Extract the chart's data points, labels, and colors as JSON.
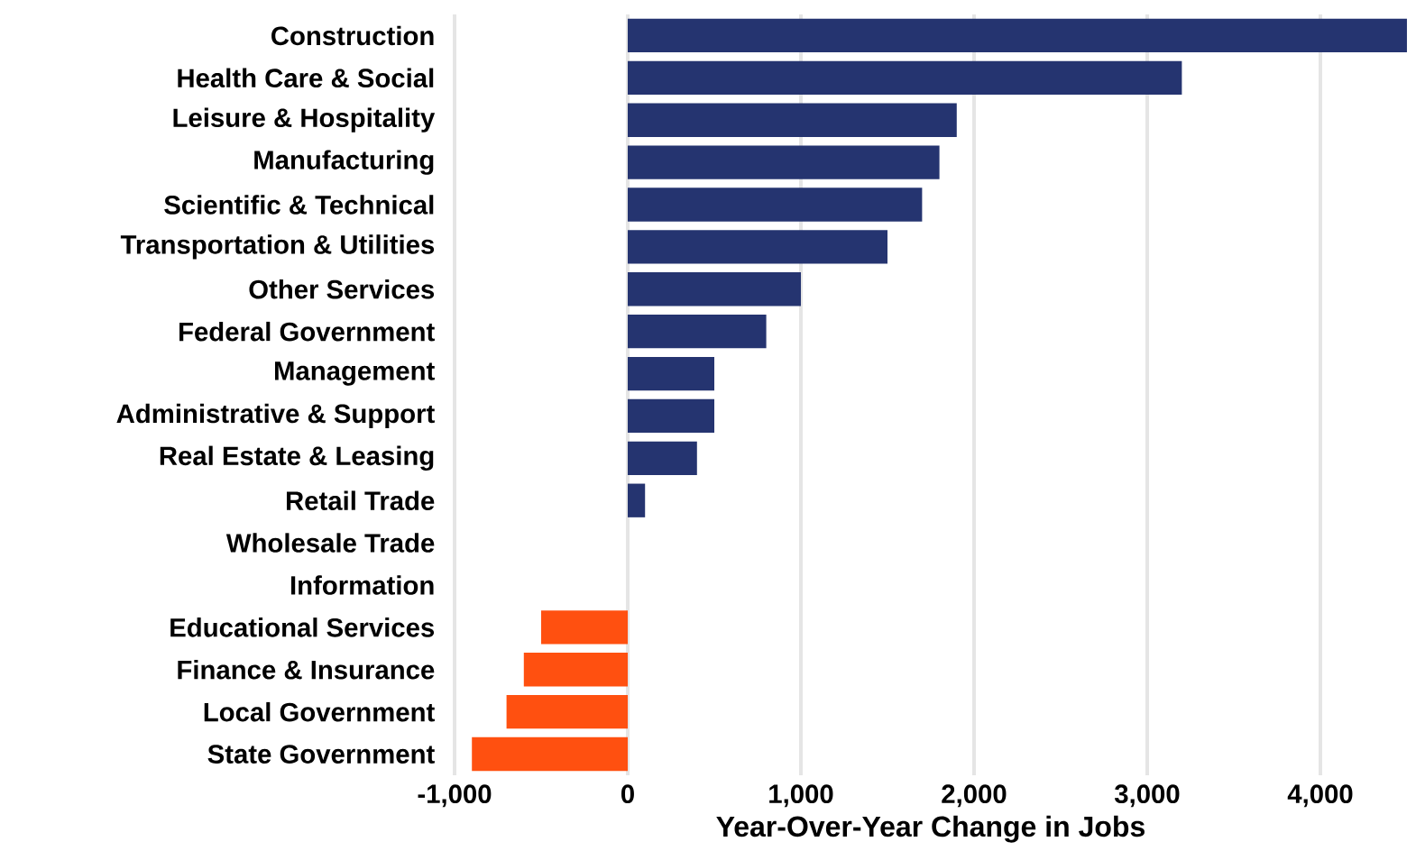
{
  "chart_data": {
    "type": "bar",
    "orientation": "horizontal",
    "xlabel": "Year-Over-Year Change in Jobs",
    "categories": [
      "Construction",
      "Health Care & Social",
      "Leisure & Hospitality",
      "Manufacturing",
      "Scientific & Technical",
      "Transportation & Utilities",
      "Other Services",
      "Federal Government",
      "Management",
      "Administrative & Support",
      "Real Estate & Leasing",
      "Retail Trade",
      "Wholesale Trade",
      "Information",
      "Educational Services",
      "Finance & Insurance",
      "Local Government",
      "State Government"
    ],
    "values": [
      4500,
      3200,
      1900,
      1800,
      1700,
      1500,
      1000,
      800,
      500,
      500,
      400,
      100,
      0,
      0,
      -500,
      -600,
      -700,
      -900
    ],
    "colors": [
      "#253470",
      "#253470",
      "#253470",
      "#253470",
      "#253470",
      "#253470",
      "#253470",
      "#253470",
      "#253470",
      "#253470",
      "#253470",
      "#253470",
      "#253470",
      "#253470",
      "#ff5010",
      "#ff5010",
      "#ff5010",
      "#ff5010"
    ],
    "xlim": [
      -1000,
      4500
    ],
    "xticks": [
      {
        "value": -1000,
        "label": "-1,000"
      },
      {
        "value": 0,
        "label": "0"
      },
      {
        "value": 1000,
        "label": "1,000"
      },
      {
        "value": 2000,
        "label": "2,000"
      },
      {
        "value": 3000,
        "label": "3,000"
      },
      {
        "value": 4000,
        "label": "4,000"
      }
    ],
    "grid": "x"
  }
}
